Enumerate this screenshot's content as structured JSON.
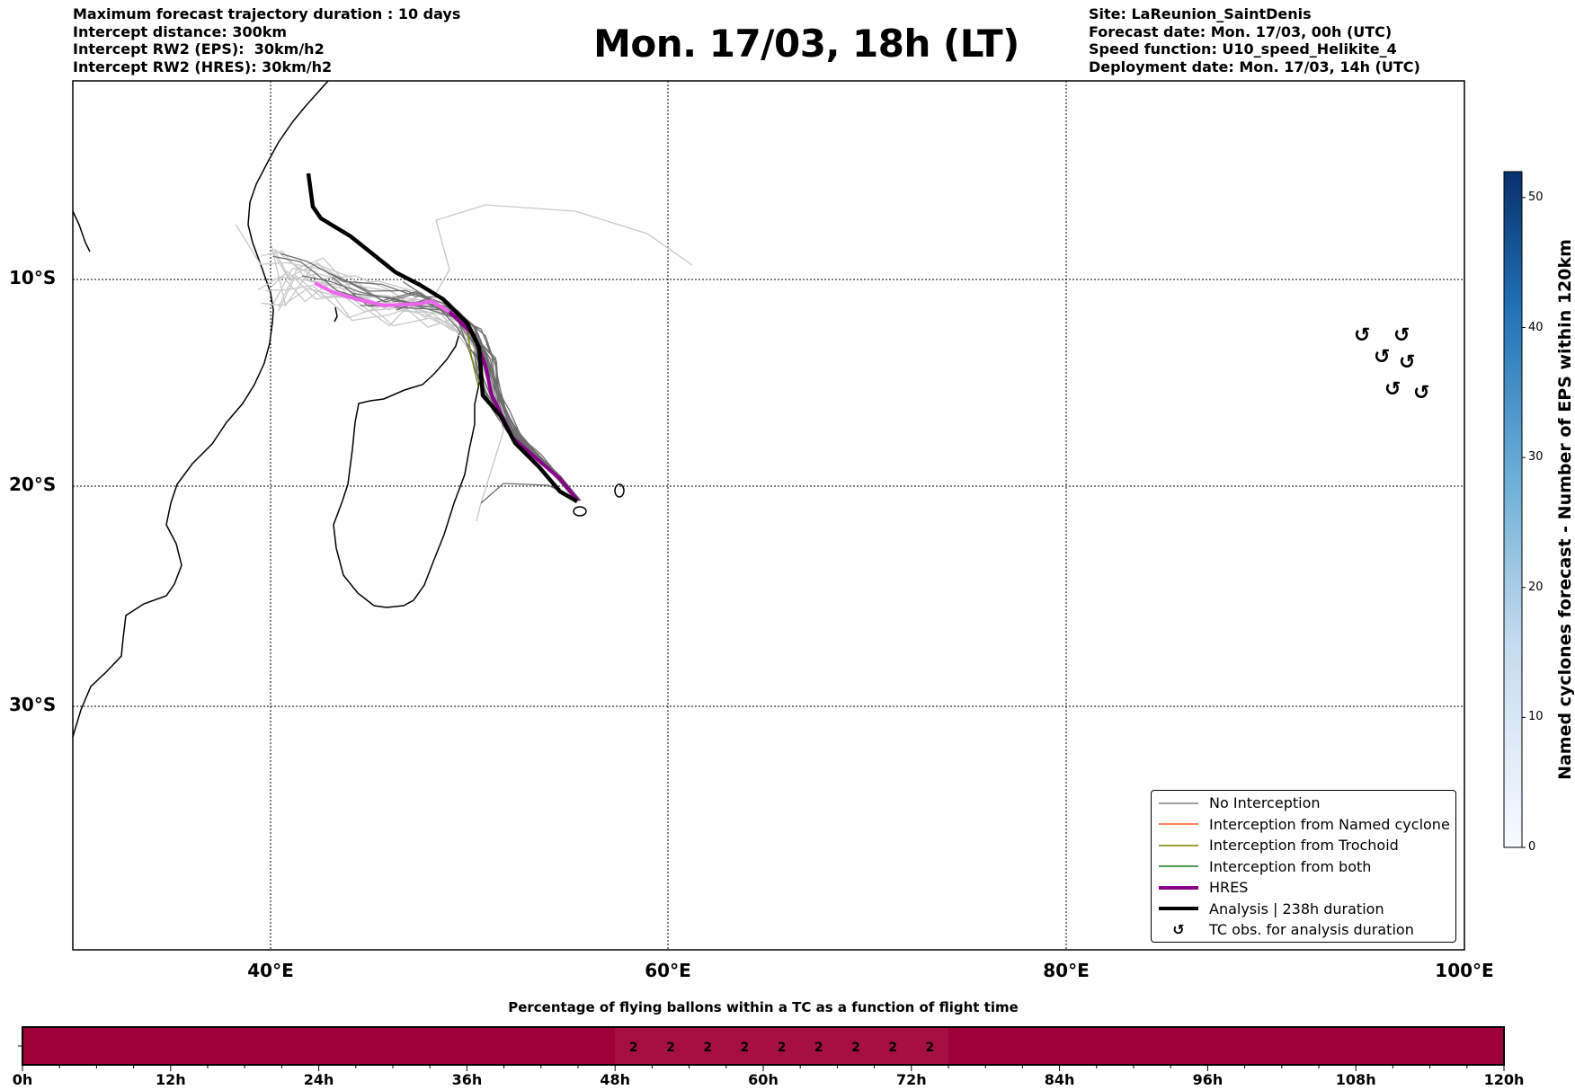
{
  "header_left": [
    "Maximum forecast trajectory duration : 10 days",
    "Intercept distance: 300km",
    "Intercept RW2 (EPS):  30km/h2",
    "Intercept RW2 (HRES): 30km/h2"
  ],
  "title": "Mon. 17/03, 18h (LT)",
  "header_right": [
    "Site: LaReunion_SaintDenis",
    "Forecast date: Mon. 17/03, 00h (UTC)",
    "Speed function: U10_speed_Helikite_4",
    "Deployment date: Mon. 17/03, 14h (UTC)"
  ],
  "map": {
    "lat_labels": [
      {
        "text": "10°S",
        "lat": -10
      },
      {
        "text": "20°S",
        "lat": -20
      },
      {
        "text": "30°S",
        "lat": -30
      }
    ],
    "lon_labels": [
      {
        "text": "40°E",
        "lon": 40
      },
      {
        "text": "60°E",
        "lon": 60
      },
      {
        "text": "80°E",
        "lon": 80
      },
      {
        "text": "100°E",
        "lon": 100
      }
    ]
  },
  "legend": [
    {
      "label": "No Interception",
      "color": "#808080"
    },
    {
      "label": "Interception from Named cyclone",
      "color": "#ff5a1f"
    },
    {
      "label": "Interception from Trochoid",
      "color": "#808000"
    },
    {
      "label": "Interception from both",
      "color": "#1a7a1a"
    },
    {
      "label": "HRES",
      "color": "#8b008b"
    },
    {
      "label": "Analysis | 238h duration",
      "color": "#000000"
    },
    {
      "label": "TC obs. for analysis duration",
      "symbol": "↺"
    }
  ],
  "colorbar": {
    "label": "Named cyclones forecast - Number of EPS within 120km",
    "ticks": [
      "0",
      "10",
      "20",
      "30",
      "40",
      "50"
    ],
    "max": 52
  },
  "flight_bar": {
    "title": "Percentage of flying ballons within a TC as a function of flight time",
    "ticks": [
      "0h",
      "12h",
      "24h",
      "36h",
      "48h",
      "60h",
      "72h",
      "84h",
      "96h",
      "108h",
      "120h"
    ],
    "cells": [
      {
        "start": 48,
        "end": 51,
        "value": "2"
      },
      {
        "start": 51,
        "end": 54,
        "value": "2"
      },
      {
        "start": 54,
        "end": 57,
        "value": "2"
      },
      {
        "start": 57,
        "end": 60,
        "value": "2"
      },
      {
        "start": 60,
        "end": 63,
        "value": "2"
      },
      {
        "start": 63,
        "end": 66,
        "value": "2"
      },
      {
        "start": 66,
        "end": 69,
        "value": "2"
      },
      {
        "start": 69,
        "end": 72,
        "value": "2"
      },
      {
        "start": 72,
        "end": 75,
        "value": "2"
      }
    ],
    "base_color": "#9e003a",
    "cell_color": "#a60f42"
  }
}
